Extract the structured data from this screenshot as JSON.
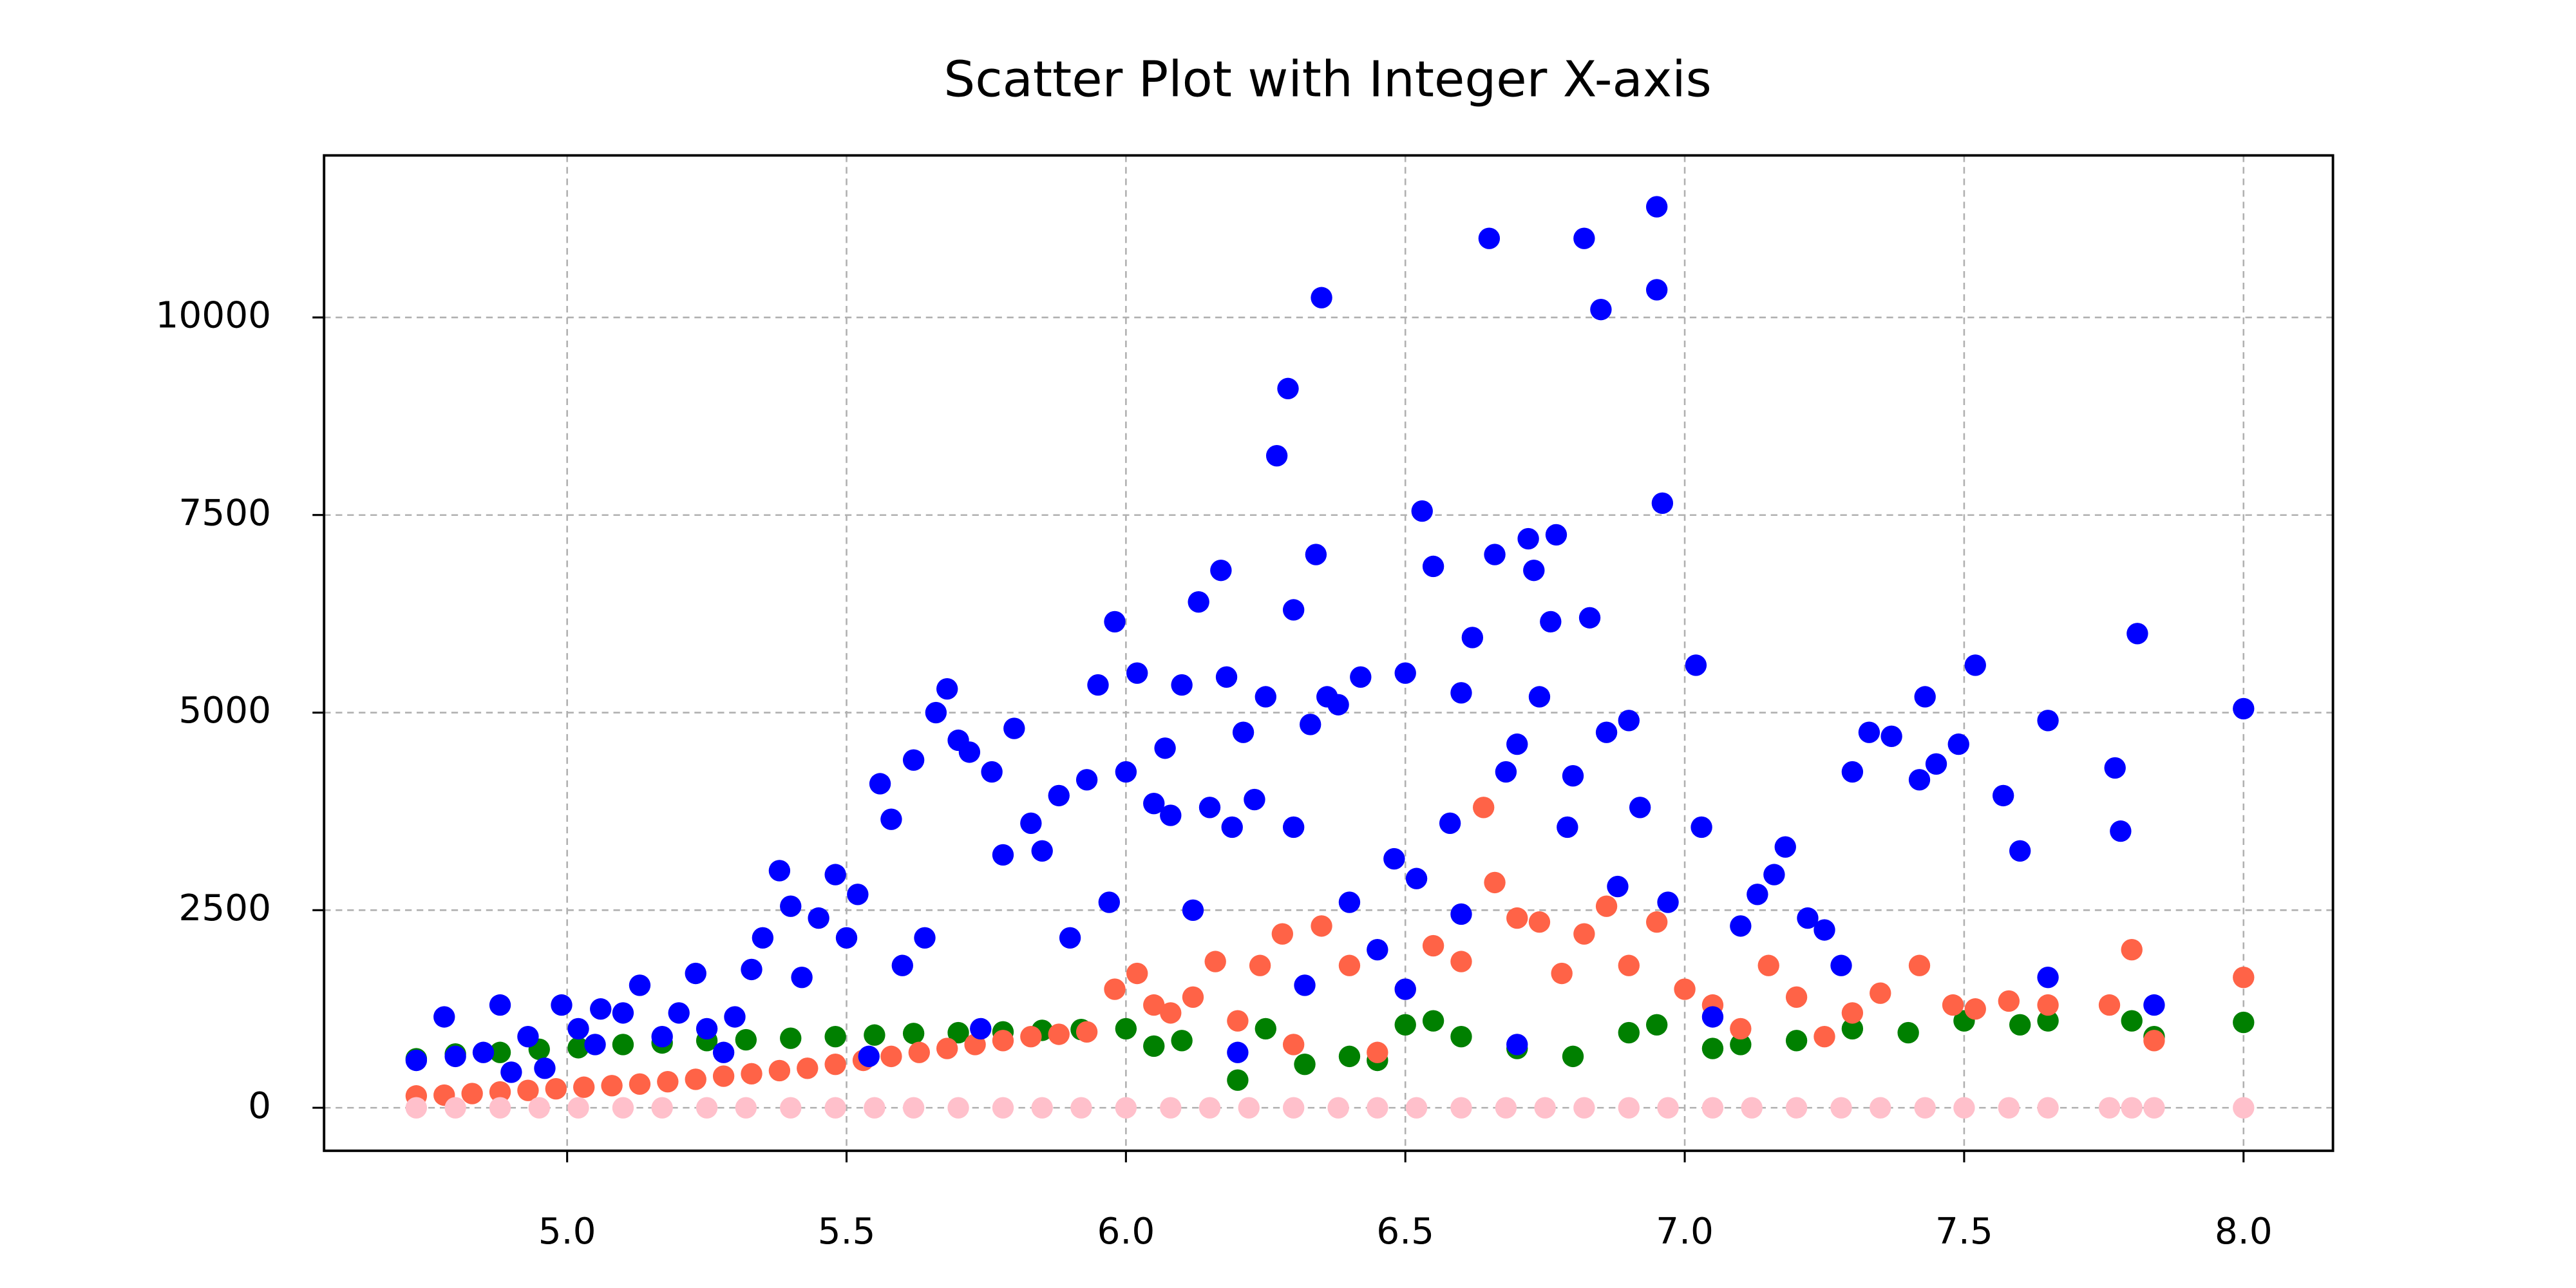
{
  "chart_data": {
    "type": "scatter",
    "title": "Scatter Plot with Integer X-axis",
    "xlim": [
      4.565,
      8.16
    ],
    "ylim": [
      -544,
      12050
    ],
    "xticks": [
      {
        "value": 5,
        "label": "5.0"
      },
      5.5,
      {
        "value": 6,
        "label": "6.0"
      },
      6.5,
      {
        "value": 7,
        "label": "7.0"
      },
      7.5,
      {
        "value": 8,
        "label": "8.0"
      }
    ],
    "yticks": [
      0,
      2500,
      5000,
      7500,
      10000
    ],
    "grid": true,
    "series": [
      {
        "color": "#008000",
        "x": [
          4.73,
          4.8,
          4.88,
          4.95,
          5.02,
          5.1,
          5.17,
          5.25,
          5.32,
          5.4,
          5.48,
          5.55,
          5.62,
          5.7,
          5.78,
          5.85,
          5.92,
          6.0,
          6.05,
          6.1,
          6.2,
          6.25,
          6.32,
          6.4,
          6.45,
          6.5,
          6.55,
          6.6,
          6.7,
          6.8,
          6.9,
          6.95,
          7.05,
          7.1,
          7.2,
          7.3,
          7.4,
          7.5,
          7.6,
          7.65,
          7.8,
          7.84,
          8.0
        ],
        "values": [
          620,
          680,
          700,
          740,
          760,
          800,
          820,
          850,
          860,
          880,
          900,
          920,
          940,
          950,
          960,
          980,
          990,
          1000,
          780,
          850,
          350,
          1000,
          550,
          650,
          600,
          1050,
          1100,
          900,
          750,
          650,
          950,
          1050,
          750,
          800,
          850,
          1000,
          950,
          1100,
          1050,
          1100,
          1100,
          900,
          1080
        ]
      },
      {
        "color": "#ff6347",
        "x": [
          4.73,
          4.78,
          4.83,
          4.88,
          4.93,
          4.98,
          5.03,
          5.08,
          5.13,
          5.18,
          5.23,
          5.28,
          5.33,
          5.38,
          5.43,
          5.48,
          5.53,
          5.58,
          5.63,
          5.68,
          5.73,
          5.78,
          5.83,
          5.88,
          5.93,
          5.98,
          6.02,
          6.05,
          6.08,
          6.12,
          6.16,
          6.2,
          6.24,
          6.28,
          6.3,
          6.35,
          6.4,
          6.45,
          6.5,
          6.55,
          6.6,
          6.64,
          6.66,
          6.7,
          6.74,
          6.78,
          6.82,
          6.86,
          6.9,
          6.95,
          7.0,
          7.05,
          7.1,
          7.15,
          7.2,
          7.25,
          7.3,
          7.35,
          7.42,
          7.48,
          7.52,
          7.58,
          7.65,
          7.76,
          7.8,
          7.84,
          8.0
        ],
        "values": [
          150,
          160,
          180,
          200,
          220,
          240,
          260,
          280,
          300,
          330,
          360,
          400,
          430,
          470,
          500,
          550,
          600,
          650,
          700,
          750,
          800,
          850,
          900,
          930,
          960,
          1500,
          1700,
          1300,
          1200,
          1400,
          1850,
          1100,
          1800,
          2200,
          800,
          2300,
          1800,
          700,
          1500,
          2050,
          1850,
          3800,
          2850,
          2400,
          2350,
          1700,
          2200,
          2550,
          1800,
          2350,
          1500,
          1300,
          1000,
          1800,
          1400,
          900,
          1200,
          1450,
          1800,
          1300,
          1250,
          1350,
          1300,
          1300,
          2000,
          850,
          1650
        ]
      },
      {
        "color": "#0000ff",
        "x": [
          4.73,
          4.78,
          4.8,
          4.85,
          4.88,
          4.9,
          4.93,
          4.96,
          4.99,
          5.02,
          5.05,
          5.06,
          5.1,
          5.13,
          5.17,
          5.2,
          5.23,
          5.25,
          5.28,
          5.3,
          5.33,
          5.35,
          5.38,
          5.4,
          5.42,
          5.45,
          5.48,
          5.5,
          5.52,
          5.54,
          5.56,
          5.58,
          5.6,
          5.62,
          5.64,
          5.66,
          5.68,
          5.7,
          5.72,
          5.74,
          5.76,
          5.78,
          5.8,
          5.83,
          5.85,
          5.88,
          5.9,
          5.93,
          5.95,
          5.97,
          5.98,
          6.0,
          6.02,
          6.05,
          6.07,
          6.08,
          6.1,
          6.12,
          6.13,
          6.15,
          6.17,
          6.18,
          6.19,
          6.2,
          6.21,
          6.23,
          6.25,
          6.27,
          6.29,
          6.3,
          6.3,
          6.32,
          6.33,
          6.34,
          6.35,
          6.36,
          6.38,
          6.4,
          6.42,
          6.45,
          6.48,
          6.5,
          6.5,
          6.52,
          6.53,
          6.55,
          6.58,
          6.6,
          6.6,
          6.62,
          6.65,
          6.66,
          6.68,
          6.7,
          6.7,
          6.72,
          6.73,
          6.74,
          6.76,
          6.77,
          6.79,
          6.8,
          6.82,
          6.83,
          6.85,
          6.86,
          6.88,
          6.9,
          6.92,
          6.95,
          6.95,
          6.96,
          6.97,
          7.02,
          7.03,
          7.05,
          7.1,
          7.13,
          7.16,
          7.18,
          7.22,
          7.25,
          7.28,
          7.3,
          7.33,
          7.37,
          7.42,
          7.43,
          7.45,
          7.49,
          7.52,
          7.57,
          7.6,
          7.65,
          7.65,
          7.77,
          7.78,
          7.81,
          7.84,
          8.0
        ],
        "values": [
          600,
          1150,
          650,
          700,
          1300,
          450,
          900,
          500,
          1300,
          1000,
          800,
          1250,
          1200,
          1550,
          900,
          1200,
          1700,
          1000,
          700,
          1150,
          1750,
          2150,
          3000,
          2550,
          1650,
          2400,
          2950,
          2150,
          2700,
          650,
          4100,
          3650,
          1800,
          4400,
          2150,
          5000,
          5300,
          4650,
          4500,
          1000,
          4250,
          3200,
          4800,
          3600,
          3250,
          3950,
          2150,
          4150,
          5350,
          2600,
          6150,
          4250,
          5500,
          3850,
          4550,
          3700,
          5350,
          2500,
          6400,
          3800,
          6800,
          5450,
          3550,
          700,
          4750,
          3900,
          5200,
          8250,
          9100,
          6300,
          3550,
          1550,
          4850,
          7000,
          10250,
          5200,
          5100,
          2600,
          5450,
          2000,
          3150,
          5500,
          1500,
          2900,
          7550,
          6850,
          3600,
          5250,
          2450,
          5950,
          11000,
          7000,
          4250,
          4600,
          800,
          7200,
          6800,
          5200,
          6150,
          7250,
          3550,
          4200,
          11000,
          6200,
          10100,
          4750,
          2800,
          4900,
          3800,
          11400,
          10350,
          7650,
          2600,
          5600,
          3550,
          1150,
          2300,
          2700,
          2950,
          3300,
          2400,
          2250,
          1800,
          4250,
          4750,
          4700,
          4150,
          5200,
          4350,
          4600,
          5600,
          3950,
          3250,
          4900,
          1650,
          4300,
          3500,
          6000,
          1300,
          5050
        ]
      },
      {
        "color": "#ffc0cb",
        "x": [
          4.73,
          4.8,
          4.88,
          4.95,
          5.02,
          5.1,
          5.17,
          5.25,
          5.32,
          5.4,
          5.48,
          5.55,
          5.62,
          5.7,
          5.78,
          5.85,
          5.92,
          6.0,
          6.08,
          6.15,
          6.22,
          6.3,
          6.38,
          6.45,
          6.52,
          6.6,
          6.68,
          6.75,
          6.82,
          6.9,
          6.97,
          7.05,
          7.12,
          7.2,
          7.28,
          7.35,
          7.43,
          7.5,
          7.58,
          7.65,
          7.76,
          7.8,
          7.84,
          8.0
        ],
        "values": [
          0,
          0,
          0,
          0,
          0,
          0,
          0,
          0,
          0,
          0,
          0,
          0,
          0,
          0,
          0,
          0,
          0,
          0,
          0,
          0,
          0,
          0,
          0,
          0,
          0,
          0,
          0,
          0,
          0,
          0,
          0,
          0,
          0,
          0,
          0,
          0,
          0,
          0,
          0,
          0,
          0,
          0,
          0,
          0
        ]
      }
    ]
  }
}
